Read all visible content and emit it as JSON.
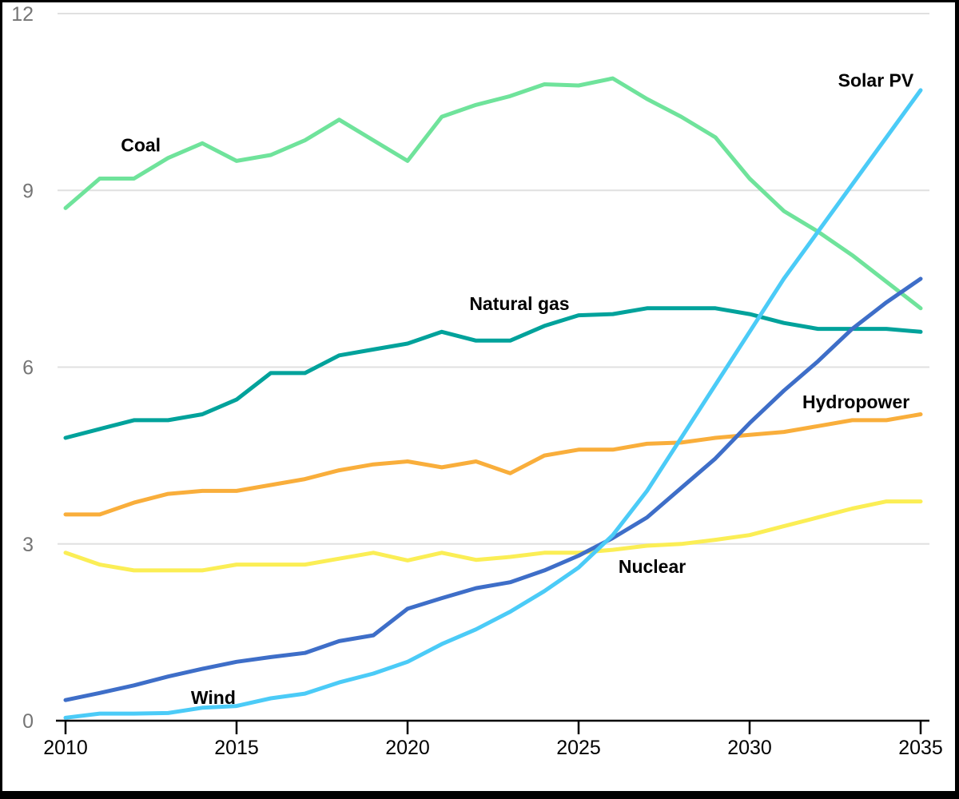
{
  "chart_data": {
    "type": "line",
    "title": "",
    "xlabel": "",
    "ylabel": "",
    "x": [
      2010,
      2011,
      2012,
      2013,
      2014,
      2015,
      2016,
      2017,
      2018,
      2019,
      2020,
      2021,
      2022,
      2023,
      2024,
      2025,
      2026,
      2027,
      2028,
      2029,
      2030,
      2031,
      2032,
      2033,
      2034,
      2035
    ],
    "xlim": [
      2010,
      2035
    ],
    "ylim": [
      0,
      12
    ],
    "xticks": [
      2010,
      2015,
      2020,
      2025,
      2030,
      2035
    ],
    "yticks": [
      0,
      3,
      6,
      9,
      12
    ],
    "grid": "horizontal",
    "legend_position": "inline-labels",
    "series": [
      {
        "name": "Coal",
        "color": "#6FE39B",
        "values": [
          8.7,
          9.2,
          9.2,
          9.55,
          9.8,
          9.5,
          9.6,
          9.85,
          10.2,
          9.85,
          9.5,
          10.25,
          10.45,
          10.6,
          10.8,
          10.78,
          10.9,
          10.55,
          10.25,
          9.9,
          9.2,
          8.65,
          8.3,
          7.9,
          7.45,
          7.0
        ],
        "label_pos": {
          "year": 2012.2,
          "value": 9.77
        }
      },
      {
        "name": "Natural gas",
        "color": "#00A29B",
        "values": [
          4.8,
          4.95,
          5.1,
          5.1,
          5.2,
          5.45,
          5.9,
          5.9,
          6.2,
          6.3,
          6.4,
          6.6,
          6.45,
          6.45,
          6.7,
          6.88,
          6.9,
          7.0,
          7.0,
          7.0,
          6.9,
          6.75,
          6.65,
          6.65,
          6.65,
          6.6
        ],
        "label_pos": {
          "year": 2023.27,
          "value": 7.08
        }
      },
      {
        "name": "Hydropower",
        "color": "#F9AE3B",
        "values": [
          3.5,
          3.5,
          3.7,
          3.85,
          3.9,
          3.9,
          4.0,
          4.1,
          4.25,
          4.35,
          4.4,
          4.3,
          4.4,
          4.2,
          4.5,
          4.6,
          4.6,
          4.7,
          4.72,
          4.8,
          4.85,
          4.9,
          5.0,
          5.1,
          5.1,
          5.2
        ],
        "label_pos": {
          "year": 2033.11,
          "value": 5.41
        }
      },
      {
        "name": "Nuclear",
        "color": "#FBEE55",
        "values": [
          2.85,
          2.65,
          2.55,
          2.55,
          2.55,
          2.65,
          2.65,
          2.65,
          2.75,
          2.85,
          2.72,
          2.85,
          2.73,
          2.78,
          2.85,
          2.85,
          2.9,
          2.97,
          3.0,
          3.07,
          3.15,
          3.3,
          3.45,
          3.6,
          3.72,
          3.72
        ],
        "label_pos": {
          "year": 2027.15,
          "value": 2.62
        }
      },
      {
        "name": "Wind",
        "color": "#3E6EC8",
        "values": [
          0.35,
          0.47,
          0.6,
          0.75,
          0.88,
          1.0,
          1.08,
          1.15,
          1.35,
          1.45,
          1.9,
          2.08,
          2.25,
          2.35,
          2.55,
          2.8,
          3.1,
          3.45,
          3.95,
          4.45,
          5.05,
          5.6,
          6.1,
          6.65,
          7.1,
          7.5
        ],
        "label_pos": {
          "year": 2014.32,
          "value": 0.39
        }
      },
      {
        "name": "Solar PV",
        "color": "#4BCBF7",
        "values": [
          0.05,
          0.12,
          0.12,
          0.13,
          0.22,
          0.25,
          0.38,
          0.46,
          0.65,
          0.8,
          1.0,
          1.3,
          1.55,
          1.85,
          2.2,
          2.6,
          3.15,
          3.9,
          4.8,
          5.7,
          6.6,
          7.5,
          8.3,
          9.1,
          9.9,
          10.7
        ],
        "label_pos": {
          "year": 2033.69,
          "value": 10.87
        }
      }
    ],
    "styles": {
      "gridline_color": "#E0E0E0",
      "axis_color": "#000000",
      "y_tick_label_color": "#757575",
      "x_tick_label_color": "#000000",
      "series_label_color": "#000000",
      "background_color": "#ffffff",
      "border_color": "#000000"
    }
  }
}
